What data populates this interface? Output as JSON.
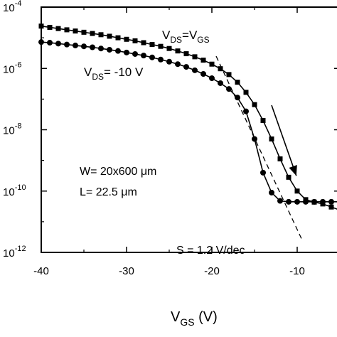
{
  "chart_data": {
    "type": "line",
    "xlabel_main": "V",
    "xlabel_sub": "GS",
    "xlabel_rest": " (V)",
    "xlim": [
      -40,
      -5
    ],
    "xticks": [
      -40,
      -30,
      -20,
      -10
    ],
    "xtick_labels": [
      "-40",
      "-30",
      "-20",
      "-10"
    ],
    "yscale": "log",
    "ylim_exp": [
      -12,
      -4
    ],
    "yticks_exp": [
      -12,
      -10,
      -8,
      -6,
      -4
    ],
    "ytick_base": "10",
    "ytick_exps": [
      "-12",
      "-10",
      "-8",
      "-6",
      "-4"
    ],
    "series": [
      {
        "marker": "square",
        "x": [
          -40,
          -39,
          -38,
          -37,
          -36,
          -35,
          -34,
          -33,
          -32,
          -31,
          -30,
          -29,
          -28,
          -27,
          -26,
          -25,
          -24,
          -23,
          -22,
          -21,
          -20,
          -19,
          -18,
          -17,
          -16,
          -15,
          -14,
          -13,
          -12,
          -11,
          -10,
          -9,
          -8,
          -7,
          -6,
          -5
        ],
        "log10y": [
          -4.62,
          -4.66,
          -4.7,
          -4.74,
          -4.78,
          -4.82,
          -4.86,
          -4.9,
          -4.95,
          -5.0,
          -5.05,
          -5.1,
          -5.16,
          -5.22,
          -5.28,
          -5.35,
          -5.43,
          -5.52,
          -5.62,
          -5.73,
          -5.86,
          -6.01,
          -6.2,
          -6.45,
          -6.78,
          -7.18,
          -7.7,
          -8.3,
          -8.95,
          -9.55,
          -10.0,
          -10.28,
          -10.36,
          -10.42,
          -10.52,
          -10.62
        ]
      },
      {
        "marker": "circle",
        "x": [
          -40,
          -39,
          -38,
          -37,
          -36,
          -35,
          -34,
          -33,
          -32,
          -31,
          -30,
          -29,
          -28,
          -27,
          -26,
          -25,
          -24,
          -23,
          -22,
          -21,
          -20,
          -19,
          -18,
          -17,
          -16,
          -15,
          -14,
          -13,
          -12,
          -11,
          -10,
          -9,
          -8,
          -7,
          -6,
          -5
        ],
        "log10y": [
          -5.14,
          -5.16,
          -5.19,
          -5.22,
          -5.25,
          -5.28,
          -5.31,
          -5.35,
          -5.39,
          -5.43,
          -5.48,
          -5.53,
          -5.58,
          -5.64,
          -5.71,
          -5.78,
          -5.86,
          -5.95,
          -6.06,
          -6.18,
          -6.32,
          -6.48,
          -6.67,
          -6.95,
          -7.4,
          -8.3,
          -9.4,
          -10.05,
          -10.32,
          -10.35,
          -10.35,
          -10.35,
          -10.35,
          -10.35,
          -10.35,
          -10.35
        ]
      }
    ],
    "arrow": {
      "from": [
        -13,
        -7.2
      ],
      "to": [
        -10.1,
        -9.5
      ]
    },
    "slope_line": {
      "from": [
        -19.5,
        -5.6
      ],
      "to": [
        -9.5,
        -11.55
      ]
    },
    "annotations": {
      "vds_vgs": {
        "main1": "V",
        "sub1": "DS",
        "mid": "=V",
        "sub2": "GS"
      },
      "vds_10": {
        "main": "V",
        "sub": "DS",
        "rest": "= -10 V"
      },
      "width": "W= 20x600 μm",
      "length": "L= 22.5 μm",
      "slope": "S = 1.2 V/dec"
    }
  }
}
